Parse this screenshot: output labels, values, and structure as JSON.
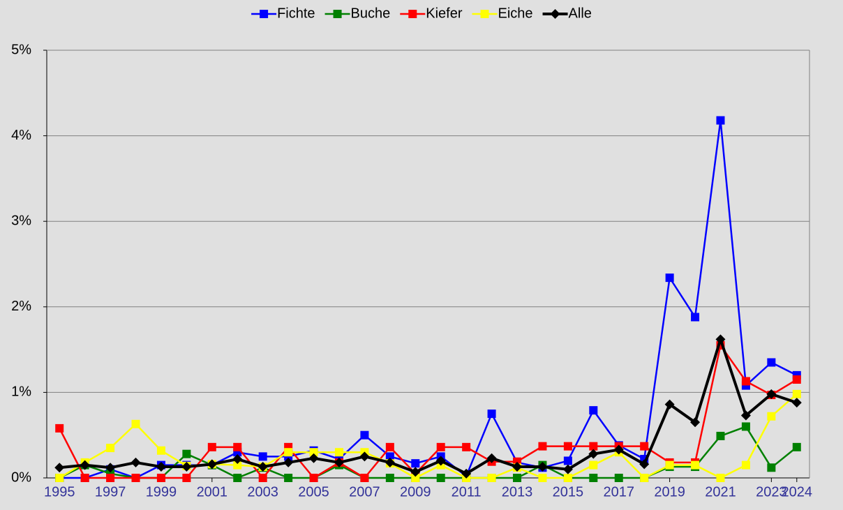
{
  "chart_data": {
    "type": "line",
    "x": [
      1995,
      1996,
      1997,
      1998,
      1999,
      2000,
      2001,
      2002,
      2003,
      2004,
      2005,
      2006,
      2007,
      2008,
      2009,
      2010,
      2011,
      2012,
      2013,
      2014,
      2015,
      2016,
      2017,
      2018,
      2019,
      2020,
      2021,
      2022,
      2023,
      2024
    ],
    "series": [
      {
        "name": "Fichte",
        "color": "#0000ff",
        "marker": "square",
        "values": [
          0,
          0,
          0.1,
          0,
          0.15,
          0.15,
          0.15,
          0.3,
          0.25,
          0.25,
          0.32,
          0.22,
          0.5,
          0.25,
          0.17,
          0.25,
          0.02,
          0.75,
          0.18,
          0.12,
          0.2,
          0.79,
          0.38,
          0.22,
          2.34,
          1.88,
          4.18,
          1.08,
          1.35,
          1.2
        ]
      },
      {
        "name": "Buche",
        "color": "#008000",
        "marker": "square",
        "values": [
          0,
          0.15,
          0.05,
          0,
          0,
          0.28,
          0.15,
          0,
          0.12,
          0,
          0,
          0.15,
          0,
          0,
          0,
          0,
          0,
          0,
          0,
          0.15,
          0,
          0,
          0,
          0,
          0.13,
          0.13,
          0.49,
          0.6,
          0.12,
          0.36
        ]
      },
      {
        "name": "Kiefer",
        "color": "#ff0000",
        "marker": "square",
        "values": [
          0.58,
          0,
          0,
          0,
          0,
          0,
          0.36,
          0.36,
          0,
          0.36,
          0,
          0.18,
          0,
          0.36,
          0.05,
          0.36,
          0.36,
          0.19,
          0.19,
          0.37,
          0.37,
          0.37,
          0.37,
          0.37,
          0.18,
          0.18,
          1.55,
          1.13,
          0.97,
          1.15
        ]
      },
      {
        "name": "Eiche",
        "color": "#ffff00",
        "marker": "square",
        "values": [
          0,
          0.18,
          0.35,
          0.63,
          0.32,
          0.14,
          0.16,
          0.15,
          0.13,
          0.3,
          0.3,
          0.3,
          0.3,
          0.17,
          0,
          0.15,
          0,
          0,
          0.12,
          0,
          0,
          0.15,
          0.3,
          0,
          0.15,
          0.15,
          0,
          0.15,
          0.72,
          0.98
        ]
      },
      {
        "name": "Alle",
        "color": "#000000",
        "marker": "diamond",
        "values": [
          0.12,
          0.15,
          0.12,
          0.18,
          0.13,
          0.13,
          0.16,
          0.22,
          0.13,
          0.18,
          0.23,
          0.18,
          0.25,
          0.18,
          0.07,
          0.2,
          0.05,
          0.23,
          0.13,
          0.13,
          0.1,
          0.28,
          0.33,
          0.16,
          0.86,
          0.65,
          1.62,
          0.73,
          0.98,
          0.88
        ]
      }
    ],
    "xlim": [
      1994.5,
      2024.5
    ],
    "xticks": [
      1995,
      1997,
      1999,
      2001,
      2003,
      2005,
      2007,
      2009,
      2011,
      2013,
      2015,
      2017,
      2019,
      2021,
      2023,
      2024
    ],
    "ylim": [
      0,
      5
    ],
    "yticks": [
      {
        "value": 0,
        "label": "0%"
      },
      {
        "value": 1,
        "label": "1%"
      },
      {
        "value": 2,
        "label": "2%"
      },
      {
        "value": 3,
        "label": "3%"
      },
      {
        "value": 4,
        "label": "4%"
      },
      {
        "value": 5,
        "label": "5%"
      }
    ],
    "grid": true,
    "legend": "top"
  }
}
